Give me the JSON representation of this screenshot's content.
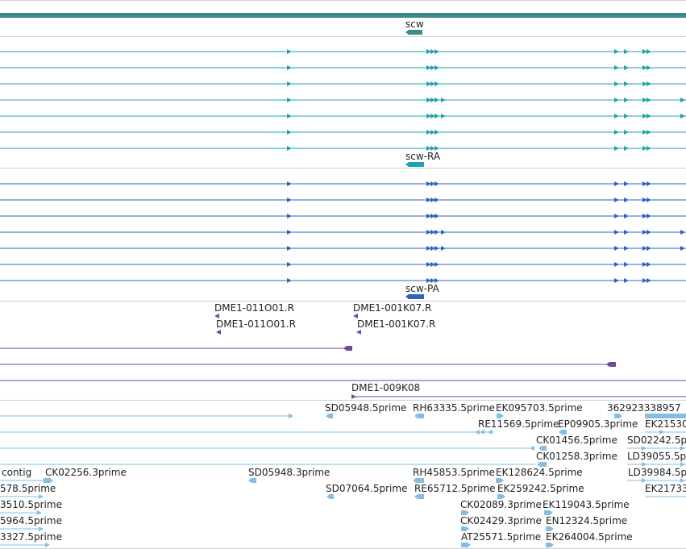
{
  "colors": {
    "gene": "#3a8b8b",
    "mrna_teal": "#1ea2b4",
    "mrna_blue": "#2e63c6",
    "cdna": "#6a4aa0",
    "est": "#86bde0",
    "separator": "#cfcfcf"
  },
  "gene_track": {
    "label": "scw"
  },
  "mrna_track": {
    "label": "scw-RA"
  },
  "protein_track": {
    "label": "scw-PA"
  },
  "cdna_track": {
    "labels": [
      "DME1-011O01.R",
      "DME1-001K07.R",
      "DME1-011O01.R",
      "DME1-001K07.R",
      "DME1-009K08"
    ]
  },
  "est_track": {
    "labels": [
      "SD05948.5prime",
      "RH63335.5prime",
      "EK095703.5prime",
      "362923338957",
      "RE11569.5prime",
      "EP09905.3prime",
      "EK21530",
      "CK01456.5prime",
      "SD02242.5p",
      "CK01258.3prime",
      "LD39055.5p",
      "contig",
      "CK02256.3prime",
      "SD05948.3prime",
      "RH45853.5prime",
      "EK128624.5prime",
      "LD39984.5p",
      "578.5prime",
      "SD07064.5prime",
      "RE65712.5prime",
      "EK259242.5prime",
      "EK21733",
      "3510.5prime",
      "CK02089.3prime",
      "EK119043.5prime",
      "5964.5prime",
      "CK02429.3prime",
      "EN12324.5prime",
      "3327.5prime",
      "AT25571.5prime",
      "EK264004.5prime"
    ]
  }
}
